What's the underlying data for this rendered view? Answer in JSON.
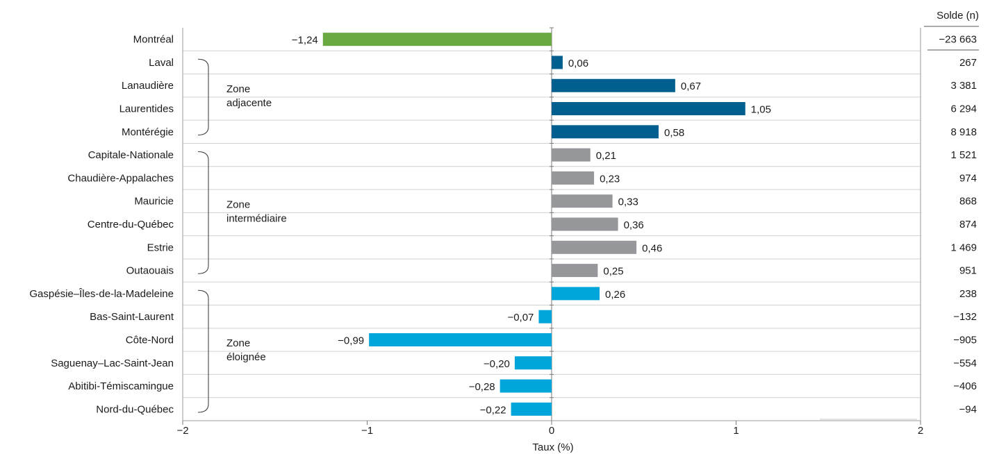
{
  "chart_data": {
    "type": "bar",
    "orientation": "horizontal",
    "xlabel": "Taux (%)",
    "xlim": [
      -2,
      2
    ],
    "xticks": [
      -2,
      -1,
      0,
      1,
      2
    ],
    "xtick_labels": [
      "−2",
      "−1",
      "0",
      "1",
      "2"
    ],
    "grid": "horizontal row separators",
    "categories": [
      "Montréal",
      "Laval",
      "Lanaudière",
      "Laurentides",
      "Montérégie",
      "Capitale-Nationale",
      "Chaudière-Appalaches",
      "Mauricie",
      "Centre-du-Québec",
      "Estrie",
      "Outaouais",
      "Gaspésie–Îles-de-la-Madeleine",
      "Bas-Saint-Laurent",
      "Côte-Nord",
      "Saguenay–Lac-Saint-Jean",
      "Abitibi-Témiscamingue",
      "Nord-du-Québec"
    ],
    "values": [
      -1.24,
      0.06,
      0.67,
      1.05,
      0.58,
      0.21,
      0.23,
      0.33,
      0.36,
      0.46,
      0.25,
      0.26,
      -0.07,
      -0.99,
      -0.2,
      -0.28,
      -0.22
    ],
    "value_labels": [
      "−1,24",
      "0,06",
      "0,67",
      "1,05",
      "0,58",
      "0,21",
      "0,23",
      "0,33",
      "0,36",
      "0,46",
      "0,25",
      "0,26",
      "−0,07",
      "−0,99",
      "−0,20",
      "−0,28",
      "−0,22"
    ],
    "colors": [
      "#6aa842",
      "#005f8f",
      "#005f8f",
      "#005f8f",
      "#005f8f",
      "#96979b",
      "#96979b",
      "#96979b",
      "#96979b",
      "#96979b",
      "#96979b",
      "#00a6d9",
      "#00a6d9",
      "#00a6d9",
      "#00a6d9",
      "#00a6d9",
      "#00a6d9"
    ],
    "zones": [
      {
        "lines": [
          "Zone",
          "adjacente"
        ],
        "first": 1,
        "last": 4
      },
      {
        "lines": [
          "Zone",
          "intermédiaire"
        ],
        "first": 5,
        "last": 10
      },
      {
        "lines": [
          "Zone",
          "éloignée"
        ],
        "first": 11,
        "last": 16
      }
    ],
    "solde": {
      "header": "Solde (n)",
      "values": [
        "−23 663",
        "267",
        "3 381",
        "6 294",
        "8 918",
        "1 521",
        "974",
        "868",
        "874",
        "1 469",
        "951",
        "238",
        "−132",
        "−905",
        "−554",
        "−406",
        "−94"
      ]
    }
  }
}
